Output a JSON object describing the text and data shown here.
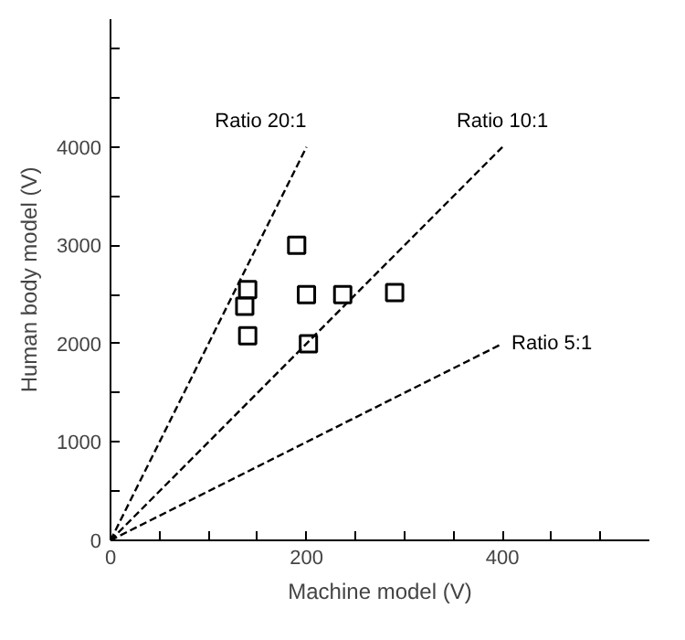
{
  "chart_data": {
    "type": "scatter",
    "xlabel": "Machine model (V)",
    "ylabel": "Human body model (V)",
    "xlim": [
      0,
      550
    ],
    "ylim": [
      0,
      5300
    ],
    "xticks": [
      0,
      {
        "value": 50,
        "label": null
      },
      {
        "value": 100,
        "label": null
      },
      {
        "value": 150,
        "label": null
      },
      200,
      {
        "value": 250,
        "label": null
      },
      {
        "value": 300,
        "label": null
      },
      {
        "value": 350,
        "label": null
      },
      400,
      {
        "value": 450,
        "label": null
      },
      {
        "value": 500,
        "label": null
      }
    ],
    "yticks": [
      0,
      {
        "value": 500,
        "label": null
      },
      1000,
      {
        "value": 1500,
        "label": null
      },
      2000,
      {
        "value": 2500,
        "label": null
      },
      3000,
      {
        "value": 3500,
        "label": null
      },
      4000,
      {
        "value": 4500,
        "label": null
      },
      {
        "value": 5000,
        "label": null
      }
    ],
    "grid": false,
    "series": [
      {
        "color": "#000000",
        "marker": "square",
        "x": [
          140,
          137,
          140,
          190,
          200,
          202,
          237,
          290
        ],
        "values": [
          2550,
          2380,
          2080,
          3000,
          2500,
          2000,
          2500,
          2520
        ]
      },
      {
        "type": "line",
        "name": "Ratio 20:1",
        "color": "#000000",
        "line_style": "dashed",
        "marker": "none",
        "x": [
          0,
          200
        ],
        "values": [
          0,
          4000
        ]
      },
      {
        "type": "line",
        "name": "Ratio 10:1",
        "color": "#000000",
        "line_style": "dashed",
        "marker": "none",
        "x": [
          0,
          400
        ],
        "values": [
          0,
          4000
        ]
      },
      {
        "type": "line",
        "name": "Ratio 5:1",
        "color": "#000000",
        "line_style": "dashed",
        "marker": "none",
        "x": [
          0,
          400
        ],
        "values": [
          0,
          2000
        ]
      }
    ]
  }
}
